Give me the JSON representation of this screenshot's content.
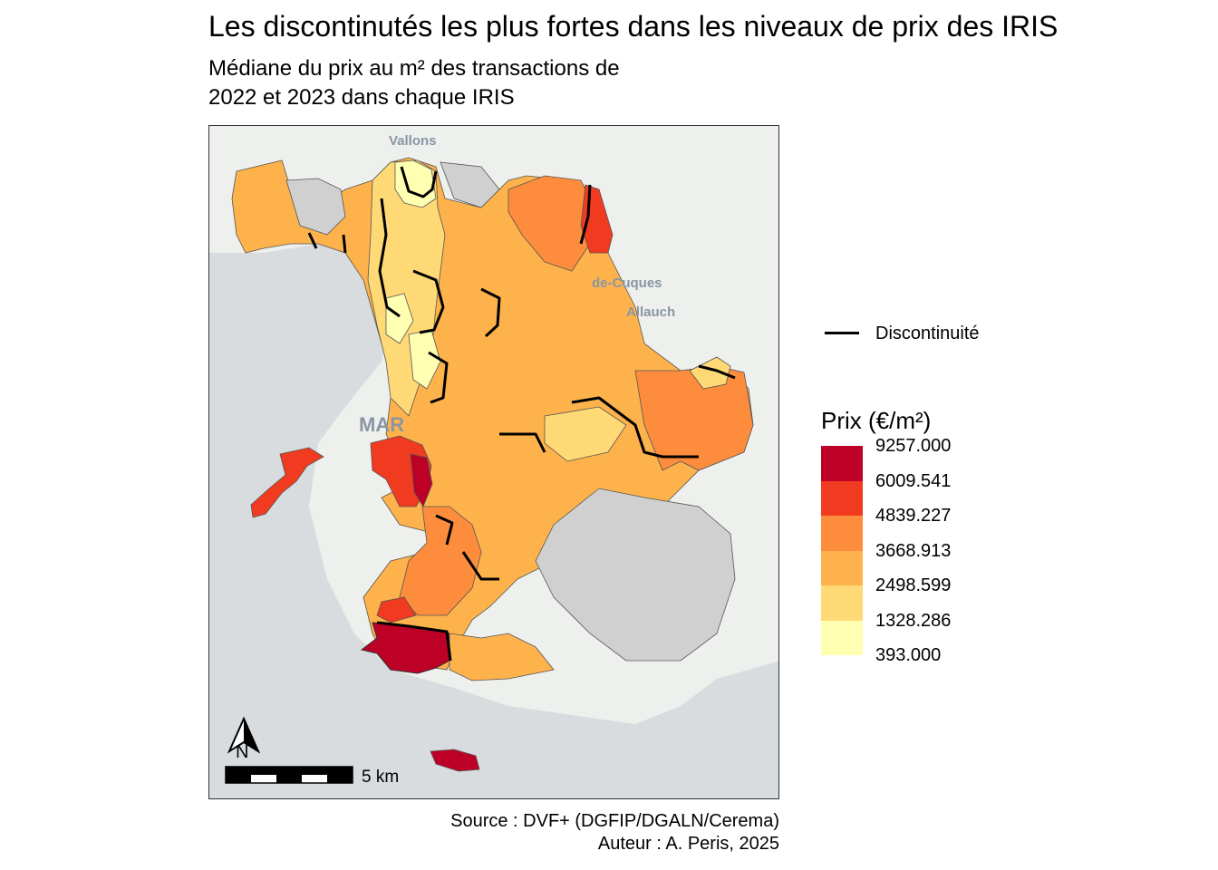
{
  "title": "Les discontinutés les plus fortes dans les niveaux de prix des IRIS",
  "subtitle_line1": "Médiane du prix au m² des transactions de",
  "subtitle_line2": "2022 et 2023 dans chaque IRIS",
  "map": {
    "basemap_labels": [
      "Vallons",
      "de-Cuques",
      "Allauch",
      "MAR"
    ],
    "north_arrow_label": "N",
    "scale_bar_label": "5 km",
    "colors": {
      "sea": "#d9dcde",
      "land": "#eef0ee",
      "no_data": "#d0d0d0",
      "border": "#555555",
      "discontinuity": "#000000"
    }
  },
  "legend": {
    "line_label": "Discontinuité",
    "title": "Prix (€/m²)",
    "breaks": [
      "9257.000",
      "6009.541",
      "4839.227",
      "3668.913",
      "2498.599",
      "1328.286",
      "393.000"
    ],
    "colors": [
      "#bd0026",
      "#f03b20",
      "#fd8d3c",
      "#feb24c",
      "#fed976",
      "#ffffb2"
    ]
  },
  "source_line1": "Source : DVF+ (DGFIP/DGALN/Cerema)",
  "source_line2": "Auteur : A. Peris, 2025"
}
